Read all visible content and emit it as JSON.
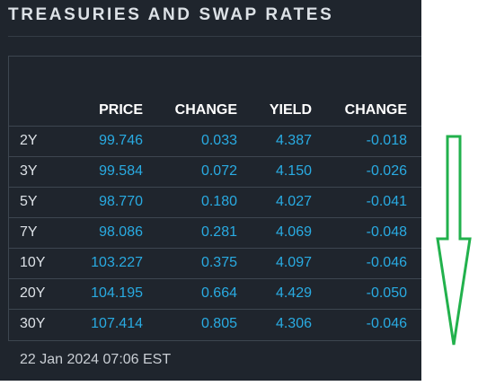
{
  "widget": {
    "title": "TREASURIES AND SWAP RATES",
    "timestamp": "22 Jan 2024 07:06 EST"
  },
  "table": {
    "headers": {
      "tenor": "",
      "price": "PRICE",
      "change": "CHANGE",
      "yield": "YIELD",
      "yield_change": "CHANGE"
    },
    "rows": [
      {
        "tenor": "2Y",
        "price": "99.746",
        "change": "0.033",
        "yield": "4.387",
        "yield_change": "-0.018"
      },
      {
        "tenor": "3Y",
        "price": "99.584",
        "change": "0.072",
        "yield": "4.150",
        "yield_change": "-0.026"
      },
      {
        "tenor": "5Y",
        "price": "98.770",
        "change": "0.180",
        "yield": "4.027",
        "yield_change": "-0.041"
      },
      {
        "tenor": "7Y",
        "price": "98.086",
        "change": "0.281",
        "yield": "4.069",
        "yield_change": "-0.048"
      },
      {
        "tenor": "10Y",
        "price": "103.227",
        "change": "0.375",
        "yield": "4.097",
        "yield_change": "-0.046"
      },
      {
        "tenor": "20Y",
        "price": "104.195",
        "change": "0.664",
        "yield": "4.429",
        "yield_change": "-0.050"
      },
      {
        "tenor": "30Y",
        "price": "107.414",
        "change": "0.805",
        "yield": "4.306",
        "yield_change": "-0.046"
      }
    ]
  },
  "annotation": {
    "icon": "down-arrow-icon",
    "color": "#22b14c"
  },
  "colors": {
    "panel_bg": "#1f252d",
    "accent_blue": "#29abe2",
    "text_light": "#dce1e6",
    "grid_line": "#3d4650"
  }
}
